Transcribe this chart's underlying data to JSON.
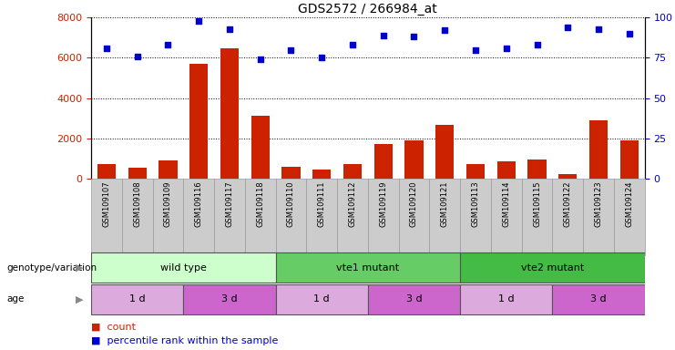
{
  "title": "GDS2572 / 266984_at",
  "samples": [
    "GSM109107",
    "GSM109108",
    "GSM109109",
    "GSM109116",
    "GSM109117",
    "GSM109118",
    "GSM109110",
    "GSM109111",
    "GSM109112",
    "GSM109119",
    "GSM109120",
    "GSM109121",
    "GSM109113",
    "GSM109114",
    "GSM109115",
    "GSM109122",
    "GSM109123",
    "GSM109124"
  ],
  "counts": [
    700,
    550,
    900,
    5700,
    6450,
    3100,
    600,
    450,
    700,
    1700,
    1900,
    2650,
    700,
    850,
    950,
    200,
    2900,
    1900
  ],
  "percentiles": [
    81,
    76,
    83,
    98,
    93,
    74,
    80,
    75,
    83,
    89,
    88,
    92,
    80,
    81,
    83,
    94,
    93,
    90
  ],
  "bar_color": "#cc2200",
  "dot_color": "#0000cc",
  "ylim_left": [
    0,
    8000
  ],
  "ylim_right": [
    0,
    100
  ],
  "yticks_left": [
    0,
    2000,
    4000,
    6000,
    8000
  ],
  "yticks_right": [
    0,
    25,
    50,
    75,
    100
  ],
  "genotype_groups": [
    {
      "label": "wild type",
      "start": 0,
      "end": 6,
      "color": "#ccffcc"
    },
    {
      "label": "vte1 mutant",
      "start": 6,
      "end": 12,
      "color": "#66cc66"
    },
    {
      "label": "vte2 mutant",
      "start": 12,
      "end": 18,
      "color": "#44bb44"
    }
  ],
  "age_groups": [
    {
      "label": "1 d",
      "start": 0,
      "end": 3,
      "color": "#ddaadd"
    },
    {
      "label": "3 d",
      "start": 3,
      "end": 6,
      "color": "#cc66cc"
    },
    {
      "label": "1 d",
      "start": 6,
      "end": 9,
      "color": "#ddaadd"
    },
    {
      "label": "3 d",
      "start": 9,
      "end": 12,
      "color": "#cc66cc"
    },
    {
      "label": "1 d",
      "start": 12,
      "end": 15,
      "color": "#ddaadd"
    },
    {
      "label": "3 d",
      "start": 15,
      "end": 18,
      "color": "#cc66cc"
    }
  ],
  "legend_count_label": "count",
  "legend_pct_label": "percentile rank within the sample",
  "genotype_label": "genotype/variation",
  "age_label": "age",
  "background_color": "#ffffff",
  "tick_area_color": "#cccccc",
  "tick_area_border": "#999999"
}
